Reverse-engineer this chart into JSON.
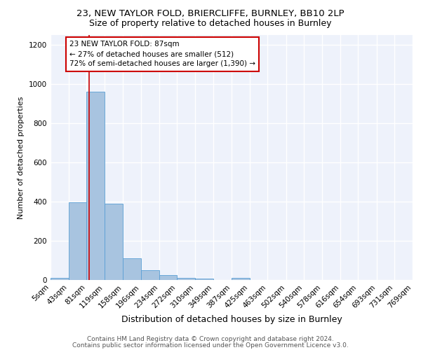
{
  "title1": "23, NEW TAYLOR FOLD, BRIERCLIFFE, BURNLEY, BB10 2LP",
  "title2": "Size of property relative to detached houses in Burnley",
  "xlabel": "Distribution of detached houses by size in Burnley",
  "ylabel": "Number of detached properties",
  "footnote1": "Contains HM Land Registry data © Crown copyright and database right 2024.",
  "footnote2": "Contains public sector information licensed under the Open Government Licence v3.0.",
  "annotation_line1": "23 NEW TAYLOR FOLD: 87sqm",
  "annotation_line2": "← 27% of detached houses are smaller (512)",
  "annotation_line3": "72% of semi-detached houses are larger (1,390) →",
  "property_size": 87,
  "bin_edges": [
    5,
    43,
    81,
    119,
    158,
    196,
    234,
    272,
    310,
    349,
    387,
    425,
    463,
    502,
    540,
    578,
    616,
    654,
    693,
    731,
    769
  ],
  "bin_labels": [
    "5sqm",
    "43sqm",
    "81sqm",
    "119sqm",
    "158sqm",
    "196sqm",
    "234sqm",
    "272sqm",
    "310sqm",
    "349sqm",
    "387sqm",
    "425sqm",
    "463sqm",
    "502sqm",
    "540sqm",
    "578sqm",
    "616sqm",
    "654sqm",
    "693sqm",
    "731sqm",
    "769sqm"
  ],
  "bar_heights": [
    10,
    395,
    960,
    390,
    110,
    50,
    25,
    12,
    8,
    0,
    10,
    0,
    0,
    0,
    0,
    0,
    0,
    0,
    0,
    0
  ],
  "bar_color": "#a8c4e0",
  "bar_edge_color": "#5a9fd4",
  "red_line_x": 87,
  "red_line_color": "#cc0000",
  "annotation_box_color": "#ffffff",
  "annotation_box_edge_color": "#cc0000",
  "ylim": [
    0,
    1250
  ],
  "yticks": [
    0,
    200,
    400,
    600,
    800,
    1000,
    1200
  ],
  "background_color": "#eef2fb",
  "grid_color": "#ffffff",
  "title1_fontsize": 9.5,
  "title2_fontsize": 9,
  "xlabel_fontsize": 9,
  "ylabel_fontsize": 8,
  "tick_fontsize": 7.5,
  "annotation_fontsize": 7.5,
  "footnote_fontsize": 6.5
}
